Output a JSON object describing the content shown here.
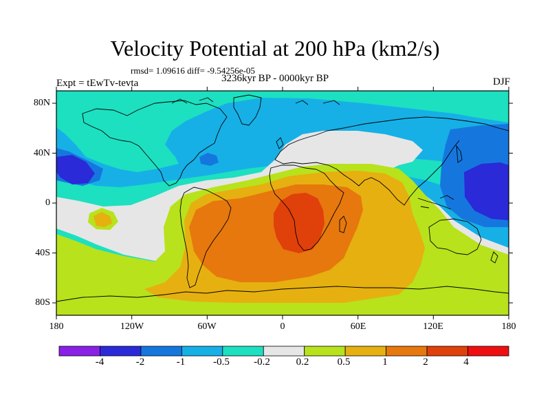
{
  "figure": {
    "title": "Velocity Potential at 200 hPa (km2/s)",
    "stats": "rmsd= 1.09616 diff= -9.54256e-05",
    "period": "3236kyr BP - 0000kyr BP",
    "experiment": "Expt = tEwTv-tevta",
    "season": "DJF"
  },
  "axes": {
    "lat_ticks": [
      "80N",
      "40N",
      "0",
      "40S",
      "80S"
    ],
    "lon_ticks": [
      "180",
      "120W",
      "60W",
      "0",
      "60E",
      "120E",
      "180"
    ]
  },
  "colorbar": {
    "levels": [
      "-4",
      "-2",
      "-1",
      "-0.5",
      "-0.2",
      "0.2",
      "0.5",
      "1",
      "2",
      "4"
    ],
    "colors": [
      "#8a20e6",
      "#2a2ad8",
      "#1577de",
      "#16b0e6",
      "#1ce0c0",
      "#e6e6e6",
      "#b8e21c",
      "#e6b010",
      "#e6780e",
      "#e0400a",
      "#ee1010"
    ]
  },
  "chart_data": {
    "type": "heatmap",
    "title": "Velocity Potential at 200 hPa (km2/s)",
    "variable": "velocity potential difference",
    "units": "km2/s",
    "projection": "cylindrical equidistant",
    "lon_range": [
      -180,
      180
    ],
    "lat_range": [
      -90,
      90
    ],
    "contour_levels": [
      -4,
      -2,
      -1,
      -0.5,
      -0.2,
      0.2,
      0.5,
      1,
      2,
      4
    ],
    "rmsd": 1.09616,
    "diff": -9.54256e-05
  },
  "map_style": {
    "coast_color": "#000000",
    "background_field": "#16b0e6"
  }
}
